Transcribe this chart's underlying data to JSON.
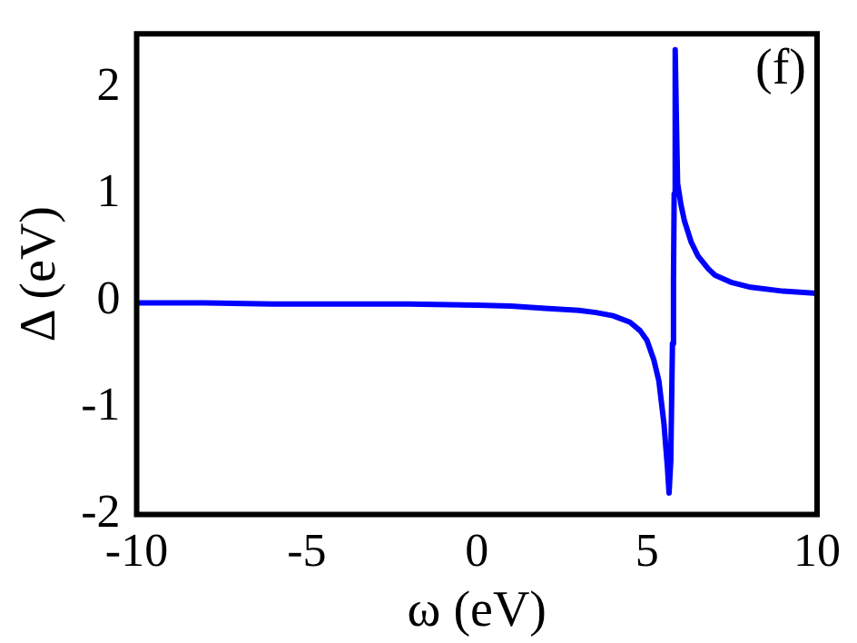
{
  "chart_data": {
    "type": "line",
    "xlabel": "ω (eV)",
    "ylabel": "Δ (eV)",
    "annotations": [
      "(f)"
    ],
    "series": [
      {
        "color": "#0000ff",
        "x": [
          -10,
          -8,
          -6,
          -4,
          -2,
          0,
          1,
          2,
          3,
          3.5,
          4,
          4.5,
          4.8,
          5,
          5.2,
          5.35,
          5.5,
          5.6,
          5.65,
          5.7,
          5.75,
          5.78,
          5.8,
          5.83,
          5.86,
          5.9,
          6,
          6.1,
          6.3,
          6.5,
          6.8,
          7,
          7.5,
          8,
          9,
          10
        ],
        "values": [
          -0.02,
          -0.02,
          -0.03,
          -0.03,
          -0.03,
          -0.04,
          -0.05,
          -0.07,
          -0.09,
          -0.11,
          -0.14,
          -0.2,
          -0.28,
          -0.37,
          -0.55,
          -0.75,
          -1.15,
          -1.55,
          -1.8,
          -1.5,
          -0.4,
          0.2,
          1.0,
          2.35,
          1.8,
          1.1,
          0.9,
          0.75,
          0.55,
          0.42,
          0.3,
          0.24,
          0.17,
          0.13,
          0.09,
          0.07
        ]
      }
    ],
    "xlim": [
      -10,
      10
    ],
    "xticks": [
      -10,
      -5,
      0,
      5,
      10
    ],
    "ylim": [
      -2,
      2.5
    ],
    "yticks": [
      -2,
      -1,
      0,
      1,
      2
    ],
    "grid": false,
    "legend": false,
    "marker": "none",
    "line_style": "solid"
  }
}
